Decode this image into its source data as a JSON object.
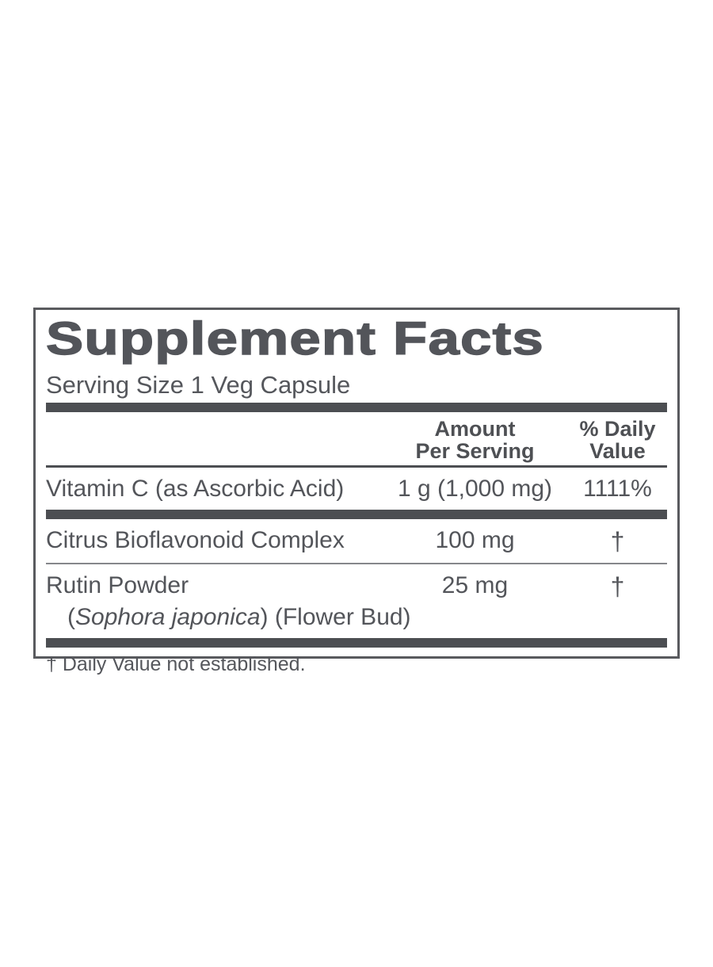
{
  "panel": {
    "title": "Supplement Facts",
    "serving_size": "Serving Size 1 Veg Capsule",
    "columns": {
      "amount_line1": "Amount",
      "amount_line2": "Per Serving",
      "daily_line1": "% Daily",
      "daily_line2": "Value"
    },
    "rows": [
      {
        "name": "Vitamin C (as Ascorbic Acid)",
        "amount": "1 g (1,000 mg)",
        "daily": "1111%"
      },
      {
        "name": "Citrus Bioflavonoid Complex",
        "amount": "100 mg",
        "daily": "†"
      },
      {
        "name": "Rutin Powder",
        "amount": "25 mg",
        "daily": "†",
        "sub": {
          "open": "(",
          "italic": "Sophora japonica",
          "rest": ") (Flower Bud)"
        }
      }
    ],
    "footnote": "† Daily Value not established.",
    "colors": {
      "text": "#53555a",
      "bar": "#4c4e52",
      "border": "#595a5e",
      "background": "#ffffff"
    }
  }
}
